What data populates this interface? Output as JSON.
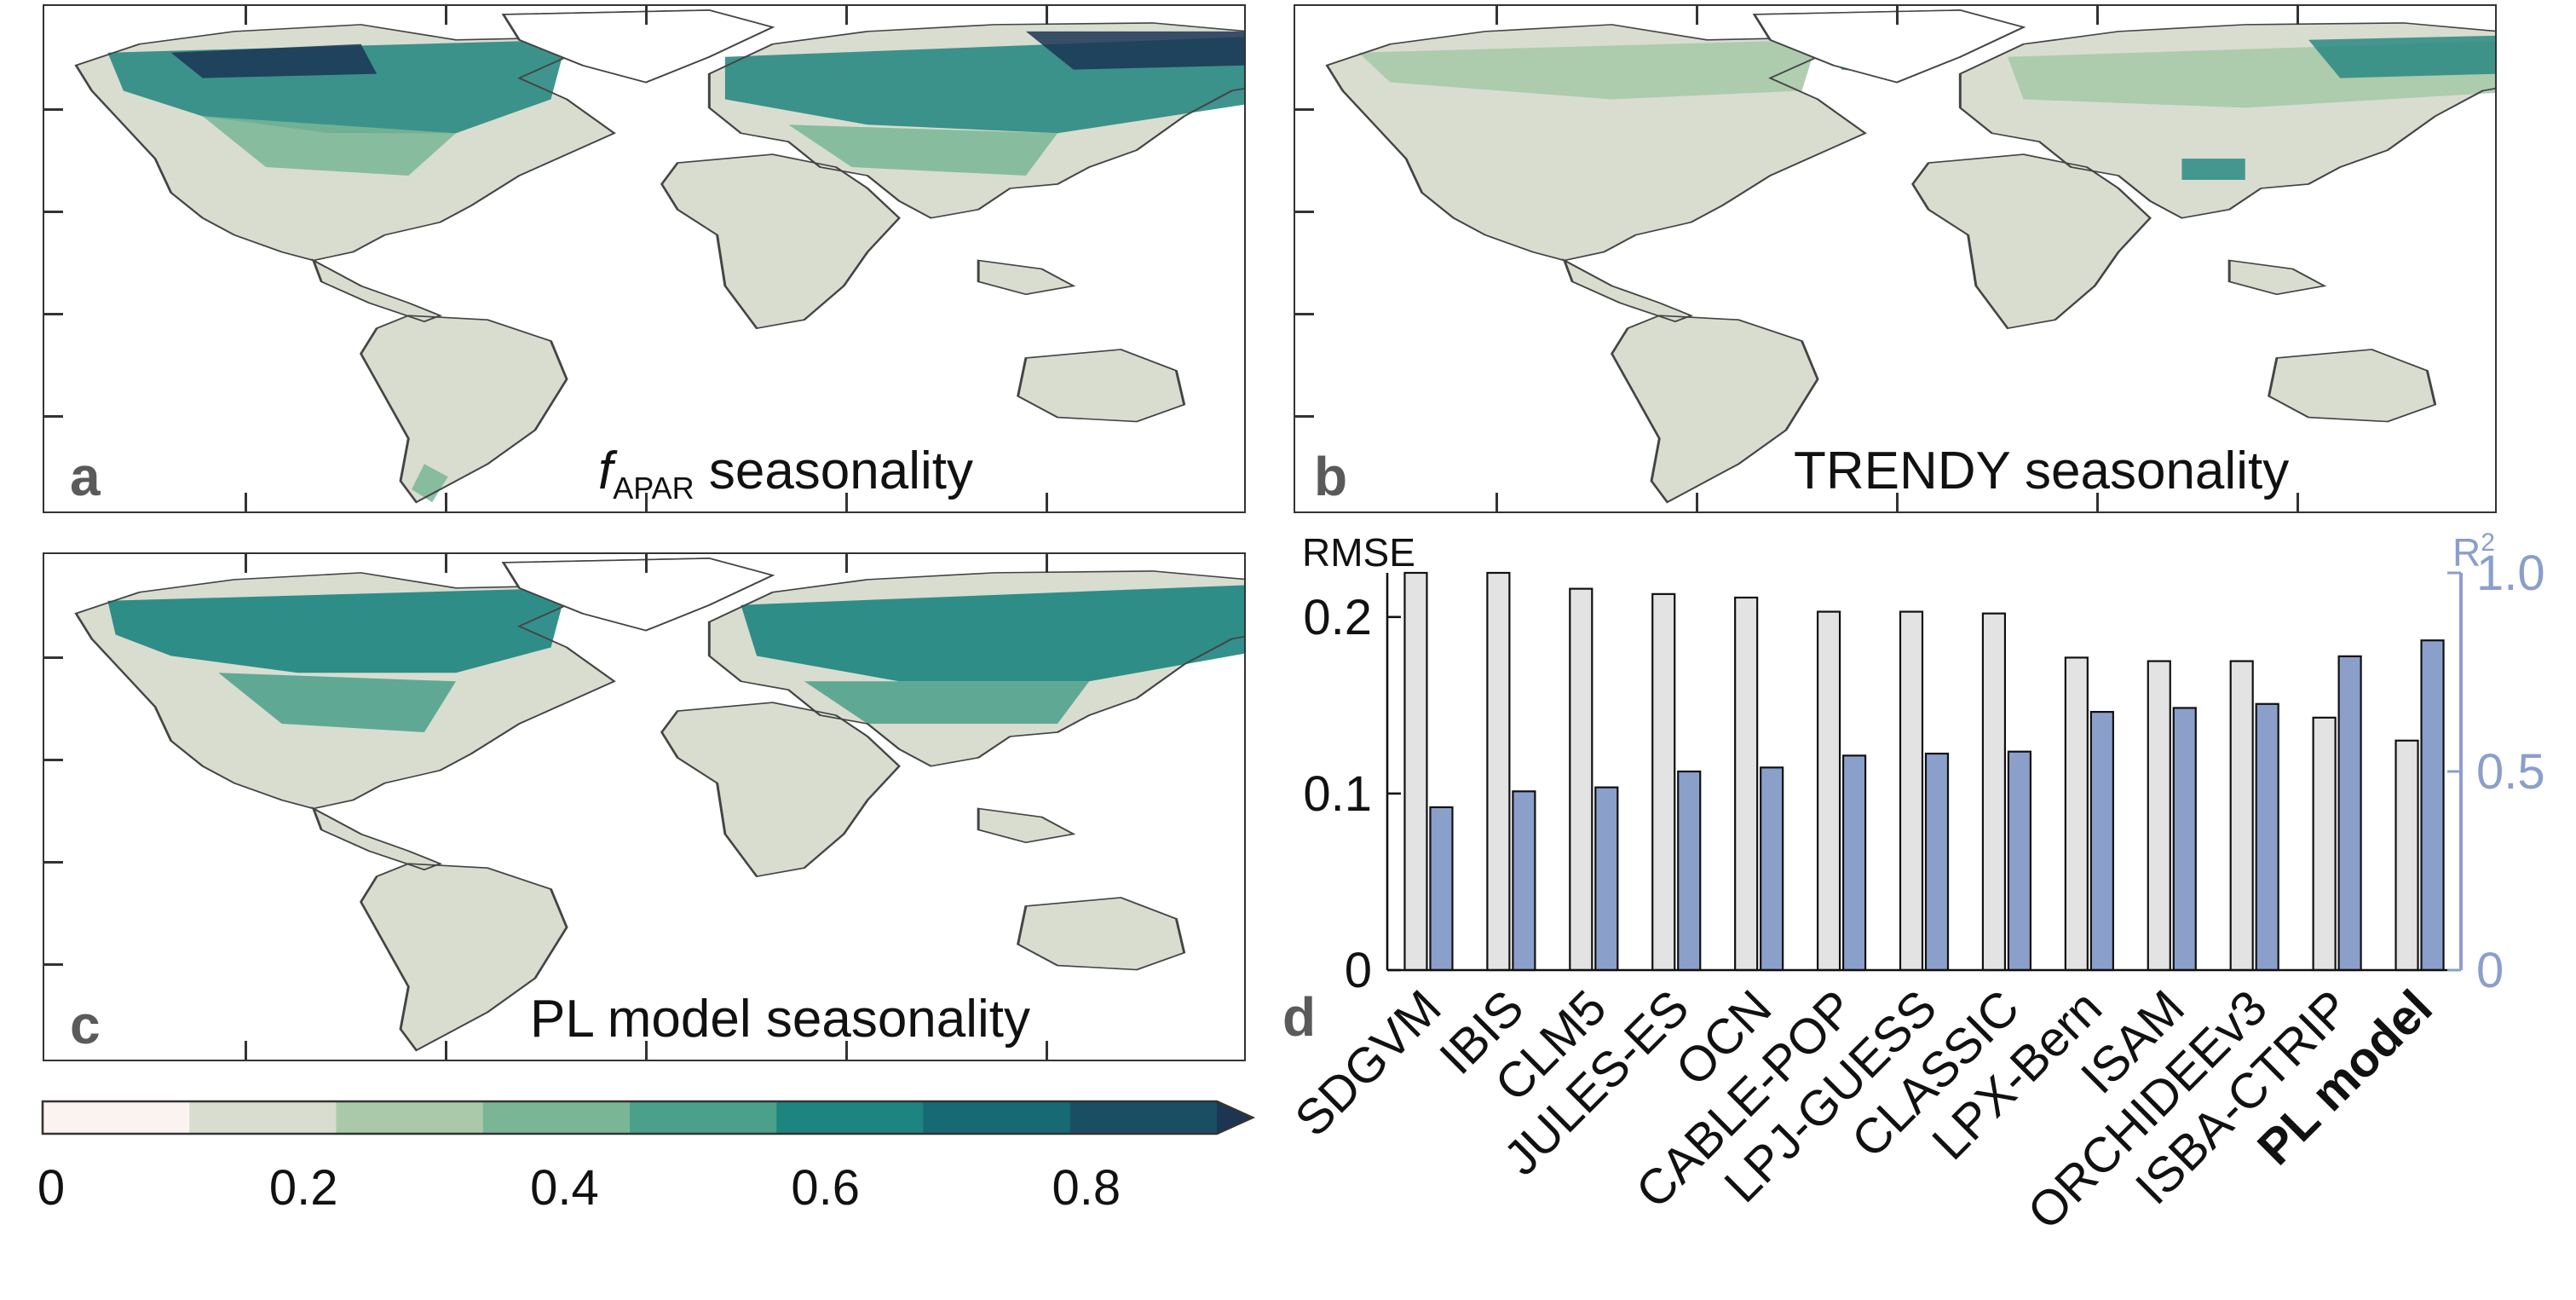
{
  "panels": {
    "a": {
      "letter": "a",
      "title_f": "f",
      "title_sub": "APAR",
      "title_rest": " seasonality"
    },
    "b": {
      "letter": "b",
      "title": "TRENDY seasonality"
    },
    "c": {
      "letter": "c",
      "title": "PL model seasonality"
    },
    "d": {
      "letter": "d"
    }
  },
  "colorbar": {
    "ticks": [
      "0",
      "0.2",
      "0.4",
      "0.6",
      "0.8"
    ],
    "tick_values": [
      0,
      0.2,
      0.4,
      0.6,
      0.8
    ],
    "range": [
      0,
      0.9
    ],
    "colors": [
      "#fbf3ef",
      "#d8ddd0",
      "#a9c9a8",
      "#7ab696",
      "#4aa08a",
      "#1d8480",
      "#156a73",
      "#1a4f63",
      "#1b3553"
    ],
    "extend": "max"
  },
  "chart_data": {
    "type": "bar",
    "categories": [
      "SDGVM",
      "IBIS",
      "CLM5",
      "JULES-ES",
      "OCN",
      "CABLE-POP",
      "LPJ-GUESS",
      "CLASSIC",
      "LPX-Bern",
      "ISAM",
      "ORCHIDEEv3",
      "ISBA-CTRIP",
      "PL model"
    ],
    "highlight_category": "PL model",
    "series": [
      {
        "name": "RMSE",
        "axis": "left",
        "color": "#e3e3e3",
        "values": [
          0.24,
          0.225,
          0.216,
          0.213,
          0.211,
          0.203,
          0.203,
          0.202,
          0.177,
          0.175,
          0.175,
          0.143,
          0.13
        ]
      },
      {
        "name": "R2",
        "axis": "right",
        "color": "#8b9fcb",
        "values": [
          0.41,
          0.45,
          0.46,
          0.5,
          0.51,
          0.54,
          0.545,
          0.55,
          0.65,
          0.66,
          0.67,
          0.79,
          0.83
        ]
      }
    ],
    "ylabel_left": "RMSE",
    "ylabel_right_base": "R",
    "ylabel_right_sup": "2",
    "ylim_left": [
      0,
      0.225
    ],
    "ylim_right": [
      0,
      1.0
    ],
    "yticks_left": [
      "0",
      "0.1",
      "0.2"
    ],
    "yticks_left_values": [
      0,
      0.1,
      0.2
    ],
    "yticks_right": [
      "0",
      "0.5",
      "1.0"
    ],
    "yticks_right_values": [
      0,
      0.5,
      1.0
    ],
    "right_axis_color": "#8b9fcb",
    "grid": false
  }
}
